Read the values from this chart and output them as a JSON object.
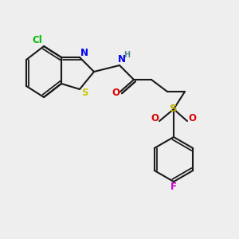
{
  "background_color": "#eeeeee",
  "bond_color": "#1a1a1a",
  "atom_colors": {
    "Cl": "#00bb00",
    "N": "#0000ee",
    "H": "#558888",
    "S_thiazole": "#cccc00",
    "O": "#dd0000",
    "S_sulfonyl": "#bbaa00",
    "F": "#cc00cc"
  },
  "figsize": [
    3.0,
    3.0
  ],
  "dpi": 100
}
